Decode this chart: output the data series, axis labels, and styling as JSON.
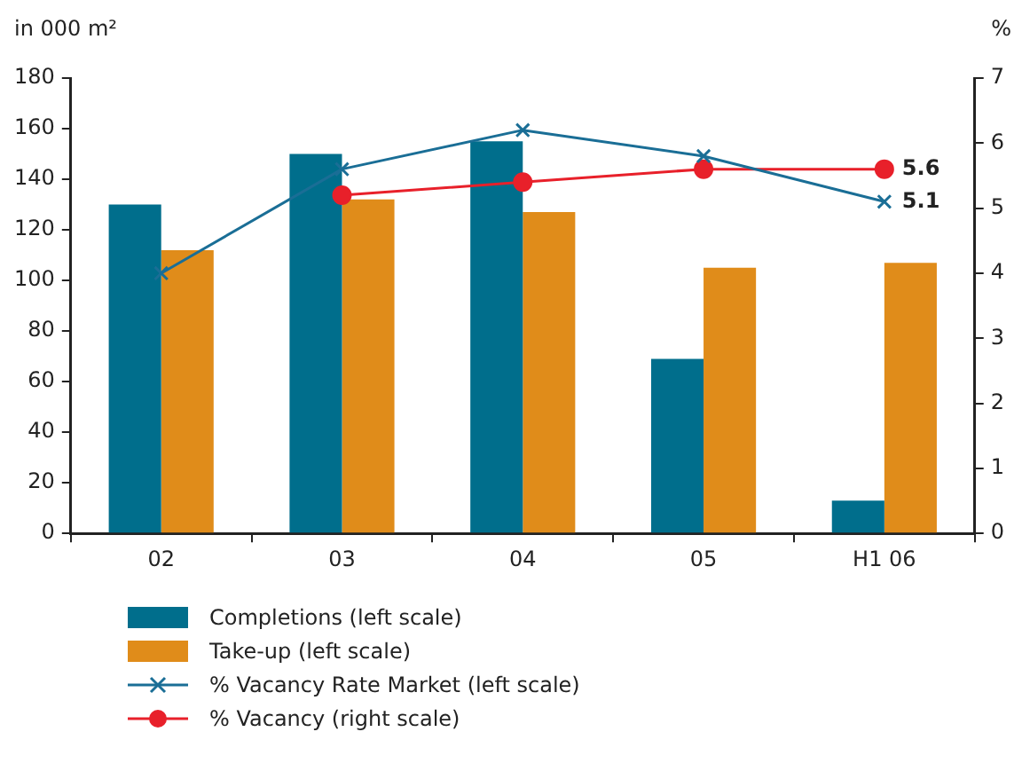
{
  "chart_data": {
    "type": "bar",
    "ylabel": "in 000 m²",
    "y2label": "%",
    "categories": [
      "02",
      "03",
      "04",
      "05",
      "H1 06"
    ],
    "series": [
      {
        "name": "Completions (left scale)",
        "color": "#006e8c",
        "values": [
          130,
          150,
          155,
          69,
          13
        ]
      },
      {
        "name": "Take-up (left scale)",
        "color": "#e08c1a",
        "values": [
          112,
          132,
          127,
          105,
          107
        ]
      },
      {
        "name": "% Vacancy Rate Market (left scale)",
        "type": "line",
        "axis": "y2",
        "marker": "cross",
        "color": "#1a6e96",
        "values": [
          4.0,
          5.6,
          6.2,
          5.8,
          5.1
        ],
        "value_labels": [
          null,
          null,
          null,
          null,
          "5.1"
        ]
      },
      {
        "name": "% Vacancy (right scale)",
        "type": "line",
        "axis": "y2",
        "marker": "circle",
        "color": "#e8202a",
        "values": [
          null,
          5.2,
          5.4,
          5.6,
          5.6
        ],
        "value_labels": [
          null,
          null,
          null,
          null,
          "5.6"
        ]
      }
    ],
    "ylim": [
      0,
      180
    ],
    "yticks": [
      0,
      20,
      40,
      60,
      80,
      100,
      120,
      140,
      160,
      180
    ],
    "y2lim": [
      0,
      7
    ],
    "y2ticks": [
      0,
      1,
      2,
      3,
      4,
      5,
      6,
      7
    ],
    "grid": false,
    "legend": "bottom"
  }
}
